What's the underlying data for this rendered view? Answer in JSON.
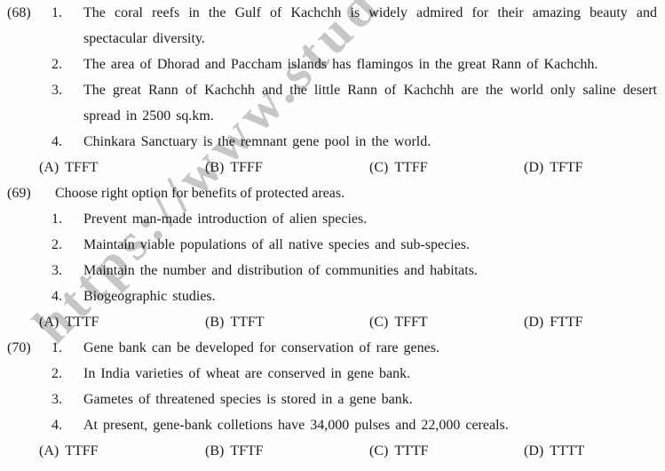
{
  "page": {
    "watermark": "https://www.stud",
    "watermark_color": "#bdbdbd",
    "text_color": "#1d1d1d",
    "background_color": "#fefefe"
  },
  "questions": [
    {
      "number": "(68)",
      "items": [
        {
          "num": "1.",
          "lines": [
            "The coral reefs in the Gulf of Kachchh is widely admired for their amazing beauty and",
            "spectacular diversity."
          ]
        },
        {
          "num": "2.",
          "lines": [
            "The area of Dhorad and Paccham islands has flamingos in the great Rann of Kachchh."
          ]
        },
        {
          "num": "3.",
          "lines": [
            "The great Rann of Kachchh and the little Rann of Kachchh are the world only saline desert",
            "spread in 2500 sq.km."
          ]
        },
        {
          "num": "4.",
          "lines": [
            "Chinkara Sanctuary is the remnant gene pool in the world."
          ]
        }
      ],
      "options": [
        {
          "label": "(A)",
          "value": "TFFT"
        },
        {
          "label": "(B)",
          "value": "TFFF"
        },
        {
          "label": "(C)",
          "value": "TTFF"
        },
        {
          "label": "(D)",
          "value": "TFTF"
        }
      ]
    },
    {
      "number": "(69)",
      "stem": "Choose right option for benefits of protected areas.",
      "items": [
        {
          "num": "1.",
          "lines": [
            "Prevent man-made introduction of alien species."
          ]
        },
        {
          "num": "2.",
          "lines": [
            "Maintain viable populations of all native species and sub-species."
          ]
        },
        {
          "num": "3.",
          "lines": [
            "Maintain the number and distribution of communities and habitats."
          ]
        },
        {
          "num": "4.",
          "lines": [
            "Biogeographic studies."
          ]
        }
      ],
      "options": [
        {
          "label": "(A)",
          "value": "TTTF"
        },
        {
          "label": "(B)",
          "value": "TTFT"
        },
        {
          "label": "(C)",
          "value": "TFFT"
        },
        {
          "label": "(D)",
          "value": "FTTF"
        }
      ]
    },
    {
      "number": "(70)",
      "items": [
        {
          "num": "1.",
          "lines": [
            "Gene bank can be developed for conservation of rare genes."
          ]
        },
        {
          "num": "2.",
          "lines": [
            "In India varieties of wheat are conserved in gene bank."
          ]
        },
        {
          "num": "3.",
          "lines": [
            "Gametes of threatened species is stored in a gene bank."
          ]
        },
        {
          "num": "4.",
          "lines": [
            "At present, gene-bank colletions have 34,000 pulses and 22,000 cereals."
          ]
        }
      ],
      "options": [
        {
          "label": "(A)",
          "value": "TTFF"
        },
        {
          "label": "(B)",
          "value": "TFTF"
        },
        {
          "label": "(C)",
          "value": "TTTF"
        },
        {
          "label": "(D)",
          "value": "TTTT"
        }
      ]
    }
  ]
}
